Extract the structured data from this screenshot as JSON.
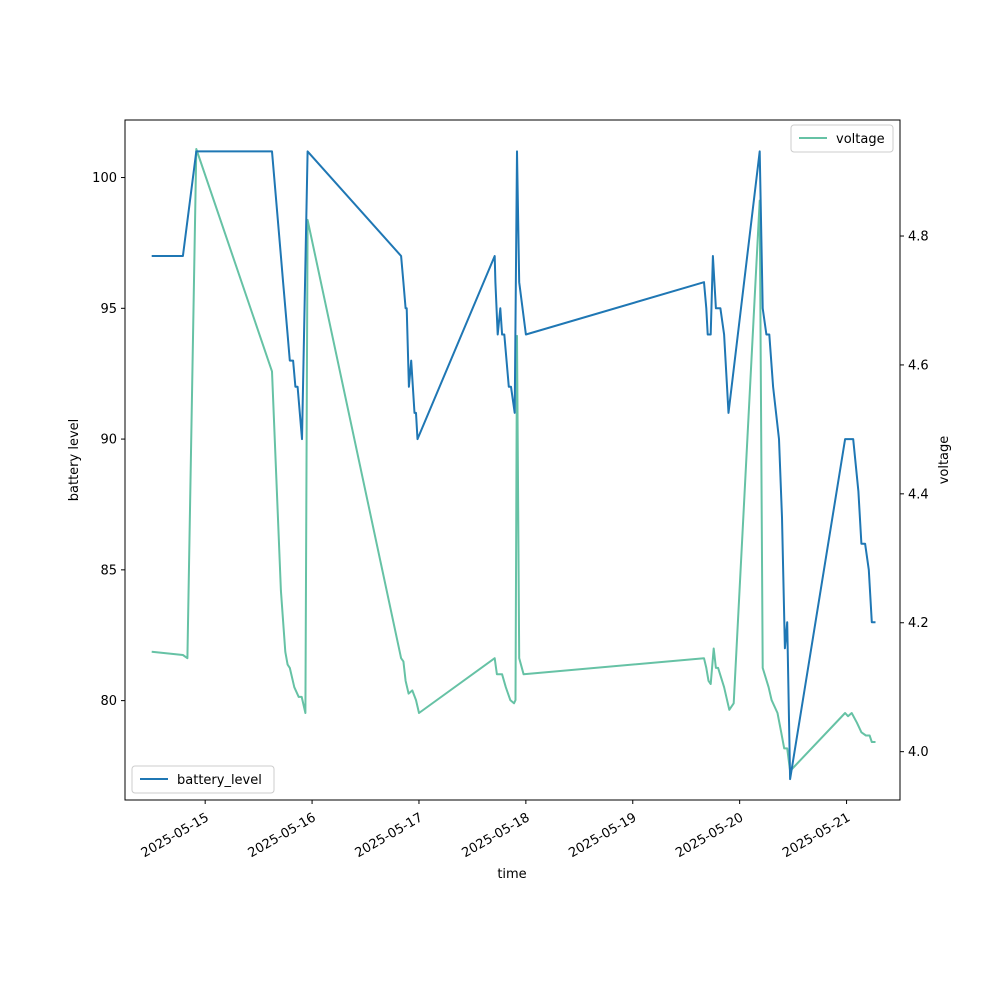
{
  "chart_data": {
    "type": "line",
    "xlabel": "time",
    "ylabel_left": "battery level",
    "ylabel_right": "voltage",
    "x_tick_labels": [
      "2025-05-15",
      "2025-05-16",
      "2025-05-17",
      "2025-05-18",
      "2025-05-19",
      "2025-05-20",
      "2025-05-21"
    ],
    "y_left_ticks": [
      80,
      85,
      90,
      95,
      100
    ],
    "y_left_lim": [
      76.2,
      102.2
    ],
    "y_right_ticks": [
      4.0,
      4.2,
      4.4,
      4.6,
      4.8
    ],
    "y_right_lim": [
      3.925,
      4.98
    ],
    "x_lim": [
      "2025-05-14 06:00",
      "2025-05-21 12:00"
    ],
    "legend_left": "lower-left",
    "legend_right": "upper-right",
    "grid": false,
    "series": [
      {
        "name": "battery_level",
        "axis": "left",
        "color": "#1f77b4",
        "points": [
          [
            "2025-05-14 12:00",
            97
          ],
          [
            "2025-05-14 19:00",
            97
          ],
          [
            "2025-05-14 22:00",
            101
          ],
          [
            "2025-05-15 15:00",
            101
          ],
          [
            "2025-05-15 17:00",
            97
          ],
          [
            "2025-05-15 17:30",
            96
          ],
          [
            "2025-05-15 18:30",
            94
          ],
          [
            "2025-05-15 19:00",
            93
          ],
          [
            "2025-05-15 19:45",
            93
          ],
          [
            "2025-05-15 20:15",
            92
          ],
          [
            "2025-05-15 20:45",
            92
          ],
          [
            "2025-05-15 21:45",
            90
          ],
          [
            "2025-05-15 23:00",
            101
          ],
          [
            "2025-05-16 20:00",
            97
          ],
          [
            "2025-05-16 20:30",
            96
          ],
          [
            "2025-05-16 21:00",
            95
          ],
          [
            "2025-05-16 21:15",
            95
          ],
          [
            "2025-05-16 21:45",
            92
          ],
          [
            "2025-05-16 22:15",
            93
          ],
          [
            "2025-05-16 23:00",
            91
          ],
          [
            "2025-05-16 23:20",
            91
          ],
          [
            "2025-05-16 23:40",
            90
          ],
          [
            "2025-05-17 17:00",
            97
          ],
          [
            "2025-05-17 17:10",
            96
          ],
          [
            "2025-05-17 17:40",
            94
          ],
          [
            "2025-05-17 18:15",
            95
          ],
          [
            "2025-05-17 18:40",
            94
          ],
          [
            "2025-05-17 19:10",
            94
          ],
          [
            "2025-05-17 20:10",
            92
          ],
          [
            "2025-05-17 20:40",
            92
          ],
          [
            "2025-05-17 21:30",
            91
          ],
          [
            "2025-05-17 22:00",
            101
          ],
          [
            "2025-05-17 22:30",
            96
          ],
          [
            "2025-05-18 00:00",
            94
          ],
          [
            "2025-05-19 16:00",
            96
          ],
          [
            "2025-05-19 16:30",
            95
          ],
          [
            "2025-05-19 16:50",
            94
          ],
          [
            "2025-05-19 17:30",
            94
          ],
          [
            "2025-05-19 18:00",
            97
          ],
          [
            "2025-05-19 18:40",
            95
          ],
          [
            "2025-05-19 19:40",
            95
          ],
          [
            "2025-05-19 20:30",
            94
          ],
          [
            "2025-05-19 21:30",
            91
          ],
          [
            "2025-05-20 04:30",
            101
          ],
          [
            "2025-05-20 05:10",
            95
          ],
          [
            "2025-05-20 06:00",
            94
          ],
          [
            "2025-05-20 06:40",
            94
          ],
          [
            "2025-05-20 07:30",
            92
          ],
          [
            "2025-05-20 08:50",
            90
          ],
          [
            "2025-05-20 09:30",
            87
          ],
          [
            "2025-05-20 10:10",
            82
          ],
          [
            "2025-05-20 10:40",
            83
          ],
          [
            "2025-05-20 11:20",
            77
          ],
          [
            "2025-05-20 23:40",
            90
          ],
          [
            "2025-05-21 01:30",
            90
          ],
          [
            "2025-05-21 02:40",
            88
          ],
          [
            "2025-05-21 03:20",
            86
          ],
          [
            "2025-05-21 04:10",
            86
          ],
          [
            "2025-05-21 05:00",
            85
          ],
          [
            "2025-05-21 05:40",
            83
          ],
          [
            "2025-05-21 06:30",
            83
          ]
        ]
      },
      {
        "name": "voltage",
        "axis": "right",
        "color": "#66c2a5",
        "points": [
          [
            "2025-05-14 12:00",
            4.155
          ],
          [
            "2025-05-14 19:00",
            4.15
          ],
          [
            "2025-05-14 20:00",
            4.145
          ],
          [
            "2025-05-14 22:00",
            4.935
          ],
          [
            "2025-05-15 15:00",
            4.59
          ],
          [
            "2025-05-15 17:00",
            4.25
          ],
          [
            "2025-05-15 18:00",
            4.155
          ],
          [
            "2025-05-15 18:30",
            4.135
          ],
          [
            "2025-05-15 19:00",
            4.13
          ],
          [
            "2025-05-15 20:00",
            4.1
          ],
          [
            "2025-05-15 21:00",
            4.085
          ],
          [
            "2025-05-15 21:40",
            4.085
          ],
          [
            "2025-05-15 22:30",
            4.06
          ],
          [
            "2025-05-15 23:00",
            4.825
          ],
          [
            "2025-05-16 20:00",
            4.145
          ],
          [
            "2025-05-16 20:30",
            4.14
          ],
          [
            "2025-05-16 21:00",
            4.11
          ],
          [
            "2025-05-16 21:40",
            4.09
          ],
          [
            "2025-05-16 22:30",
            4.095
          ],
          [
            "2025-05-16 23:20",
            4.08
          ],
          [
            "2025-05-17 00:00",
            4.06
          ],
          [
            "2025-05-17 17:00",
            4.145
          ],
          [
            "2025-05-17 17:30",
            4.12
          ],
          [
            "2025-05-17 18:40",
            4.12
          ],
          [
            "2025-05-17 19:30",
            4.1
          ],
          [
            "2025-05-17 20:30",
            4.08
          ],
          [
            "2025-05-17 21:20",
            4.075
          ],
          [
            "2025-05-17 21:40",
            4.08
          ],
          [
            "2025-05-17 22:00",
            4.645
          ],
          [
            "2025-05-17 22:30",
            4.145
          ],
          [
            "2025-05-17 23:30",
            4.12
          ],
          [
            "2025-05-19 16:00",
            4.145
          ],
          [
            "2025-05-19 16:30",
            4.13
          ],
          [
            "2025-05-19 17:00",
            4.11
          ],
          [
            "2025-05-19 17:30",
            4.105
          ],
          [
            "2025-05-19 18:10",
            4.16
          ],
          [
            "2025-05-19 18:40",
            4.13
          ],
          [
            "2025-05-19 19:10",
            4.13
          ],
          [
            "2025-05-19 20:30",
            4.1
          ],
          [
            "2025-05-19 21:40",
            4.065
          ],
          [
            "2025-05-19 22:40",
            4.075
          ],
          [
            "2025-05-20 04:30",
            4.855
          ],
          [
            "2025-05-20 05:10",
            4.13
          ],
          [
            "2025-05-20 06:30",
            4.1
          ],
          [
            "2025-05-20 07:10",
            4.08
          ],
          [
            "2025-05-20 08:30",
            4.06
          ],
          [
            "2025-05-20 09:20",
            4.03
          ],
          [
            "2025-05-20 10:00",
            4.005
          ],
          [
            "2025-05-20 10:40",
            4.005
          ],
          [
            "2025-05-20 11:20",
            3.97
          ],
          [
            "2025-05-20 23:40",
            4.06
          ],
          [
            "2025-05-21 00:20",
            4.055
          ],
          [
            "2025-05-21 01:10",
            4.06
          ],
          [
            "2025-05-21 02:20",
            4.045
          ],
          [
            "2025-05-21 03:20",
            4.03
          ],
          [
            "2025-05-21 04:20",
            4.025
          ],
          [
            "2025-05-21 05:10",
            4.025
          ],
          [
            "2025-05-21 05:40",
            4.015
          ],
          [
            "2025-05-21 06:30",
            4.015
          ]
        ]
      }
    ]
  }
}
